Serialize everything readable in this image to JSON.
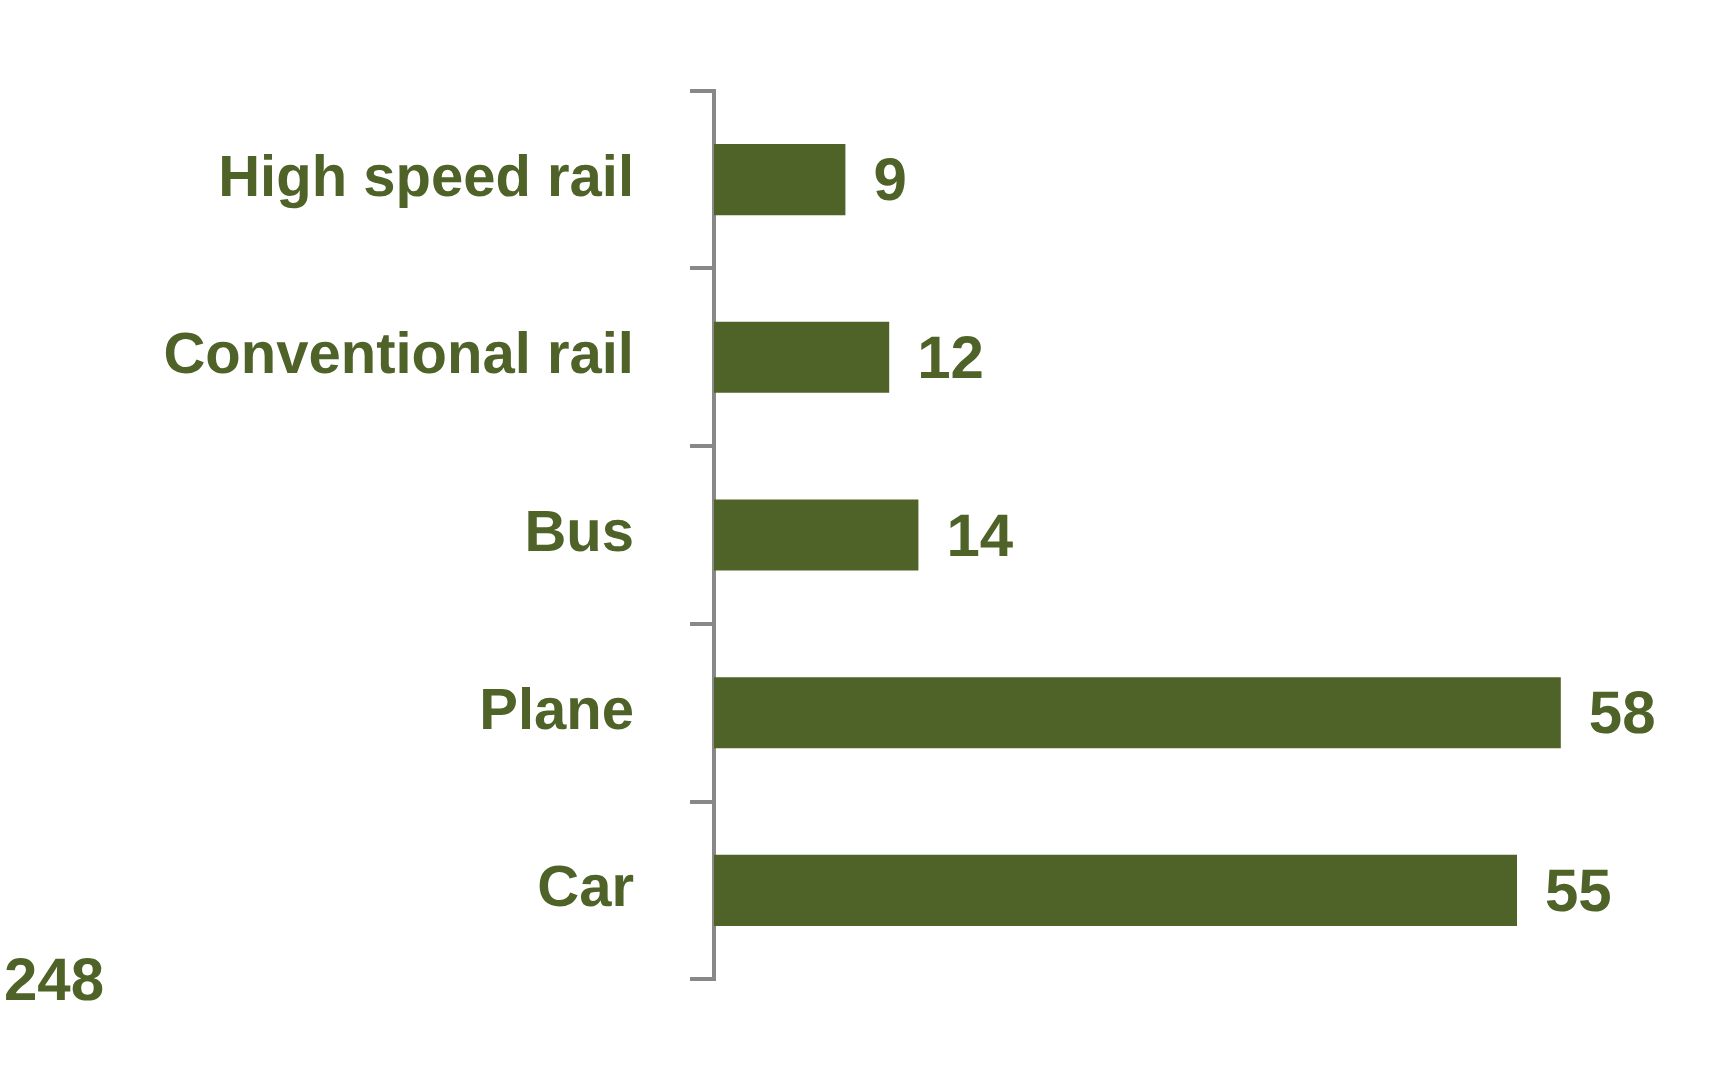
{
  "chart_data": {
    "type": "bar",
    "orientation": "horizontal",
    "categories": [
      "High speed rail",
      "Conventional rail",
      "Bus",
      "Plane",
      "Car"
    ],
    "values": [
      9,
      12,
      14,
      58,
      55
    ],
    "color": "#4f6228",
    "data_labels": true,
    "legend": false,
    "annotations": [
      "248"
    ]
  }
}
